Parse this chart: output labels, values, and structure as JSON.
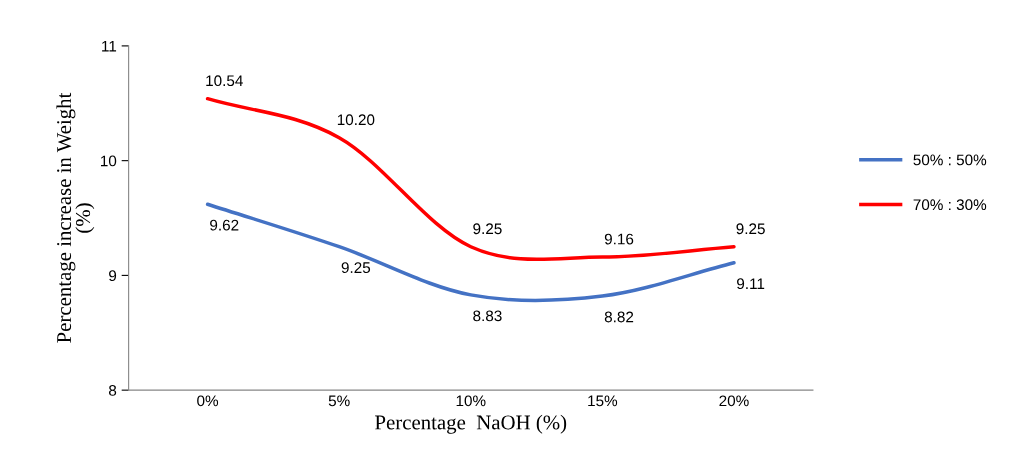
{
  "chart_data": {
    "type": "line",
    "xlabel": "Percentage  NaOH (%)",
    "ylabel": "Percentage increase in Weight\n(%)",
    "categories": [
      "0%",
      "5%",
      "10%",
      "15%",
      "20%"
    ],
    "series": [
      {
        "name": "50% : 50%",
        "color": "#4472c4",
        "values": [
          9.62,
          9.25,
          8.83,
          8.82,
          9.11
        ],
        "value_labels": [
          "9.62",
          "9.25",
          "8.83",
          "8.82",
          "9.11"
        ]
      },
      {
        "name": "70% : 30%",
        "color": "#ff0000",
        "values": [
          10.54,
          10.2,
          9.25,
          9.16,
          9.25
        ],
        "value_labels": [
          "10.54",
          "10.20",
          "9.25",
          "9.16",
          "9.25"
        ]
      }
    ],
    "ylim": [
      8,
      11
    ],
    "yticks": [
      8,
      9,
      10,
      11
    ],
    "grid": false,
    "legend": "right",
    "marker": "none",
    "line_style": "solid"
  }
}
